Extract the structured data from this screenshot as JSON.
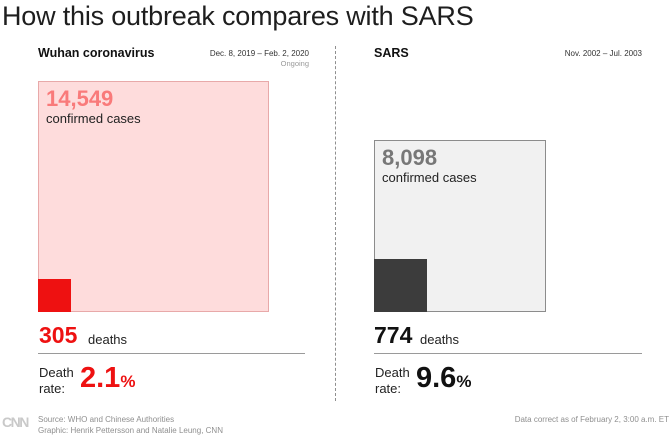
{
  "title": "How this outbreak compares with SARS",
  "colors": {
    "wuhan_box_fill": "#fedcdc",
    "wuhan_box_border": "#e8a9a9",
    "wuhan_accent": "#ee1111",
    "wuhan_cases_text": "#f97a7a",
    "sars_box_fill": "#f1f1f1",
    "sars_box_border": "#8c8c8c",
    "sars_accent": "#111111",
    "sars_deaths_fill": "#3c3c3c",
    "sars_cases_text": "#777777"
  },
  "chart_data": [
    {
      "type": "area",
      "panel": "Wuhan coronavirus",
      "dates": "Dec. 8, 2019 – Feb. 2, 2020",
      "status": "Ongoing",
      "confirmed_cases": 14549,
      "confirmed_cases_text": "14,549",
      "cases_label": "confirmed cases",
      "deaths": 305,
      "deaths_text": "305",
      "deaths_label": "deaths",
      "death_rate_label_1": "Death",
      "death_rate_label_2": "rate:",
      "death_rate": 2.1,
      "death_rate_text": "2.1",
      "percent_sign": "%"
    },
    {
      "type": "area",
      "panel": "SARS",
      "dates": "Nov. 2002 – Jul. 2003",
      "confirmed_cases": 8098,
      "confirmed_cases_text": "8,098",
      "cases_label": "confirmed cases",
      "deaths": 774,
      "deaths_text": "774",
      "deaths_label": "deaths",
      "death_rate_label_1": "Death",
      "death_rate_label_2": "rate:",
      "death_rate": 9.6,
      "death_rate_text": "9.6",
      "percent_sign": "%"
    }
  ],
  "footer": {
    "logo": "CNN",
    "source": "Source: WHO and Chinese Authorities",
    "graphic": "Graphic: Henrik Pettersson and Natalie Leung, CNN",
    "note": "Data correct as of February 2, 3:00 a.m. ET"
  }
}
